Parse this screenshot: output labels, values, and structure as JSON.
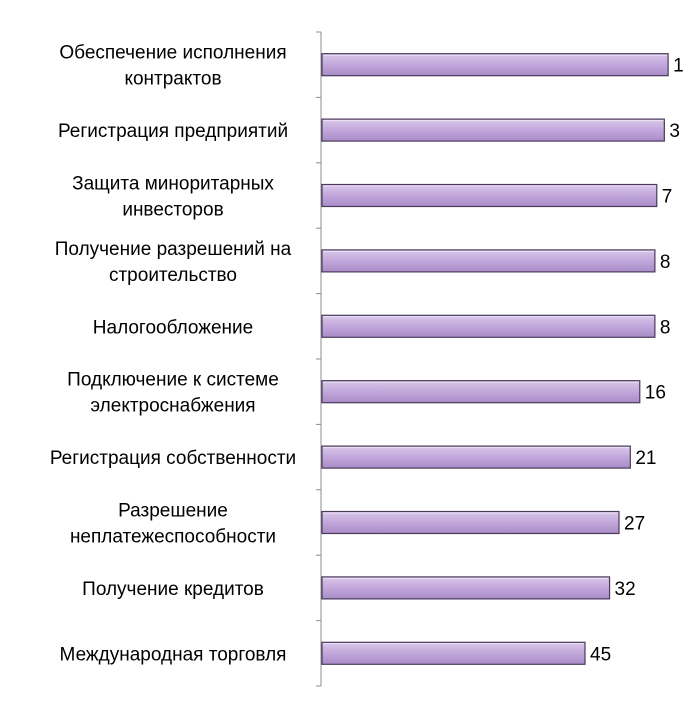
{
  "chart_data": {
    "type": "bar",
    "orientation": "horizontal",
    "title": "",
    "xlabel": "",
    "ylabel": "",
    "axis_order": "reversed",
    "categories": [
      "Обеспечение исполнения контрактов",
      "Регистрация предприятий",
      "Защита миноритарных инвесторов",
      "Получение разрешений на строительство",
      "Налогообложение",
      "Подключение к системе электроснабжения",
      "Регистрация собственности",
      "Разрешение неплатежеспособности",
      "Получение кредитов",
      "Международная торговля"
    ],
    "category_label_lines": [
      [
        "Обеспечение исполнения",
        "контрактов"
      ],
      [
        "Регистрация предприятий"
      ],
      [
        "Защита миноритарных",
        "инвесторов"
      ],
      [
        "Получение разрешений на",
        "строительство"
      ],
      [
        "Налогообложение"
      ],
      [
        "Подключение к системе",
        "электроснабжения"
      ],
      [
        "Регистрация собственности"
      ],
      [
        "Разрешение",
        "неплатежеспособности"
      ],
      [
        "Получение кредитов"
      ],
      [
        "Международная торговля"
      ]
    ],
    "values": [
      1,
      3,
      7,
      8,
      8,
      16,
      21,
      27,
      32,
      45
    ],
    "data_labels": [
      "1",
      "3",
      "7",
      "8",
      "8",
      "16",
      "21",
      "27",
      "32",
      "45"
    ],
    "grid": false,
    "legend": "none",
    "bar_color": "#bfa4d9",
    "bar_border_color": "#4b3a5c"
  }
}
